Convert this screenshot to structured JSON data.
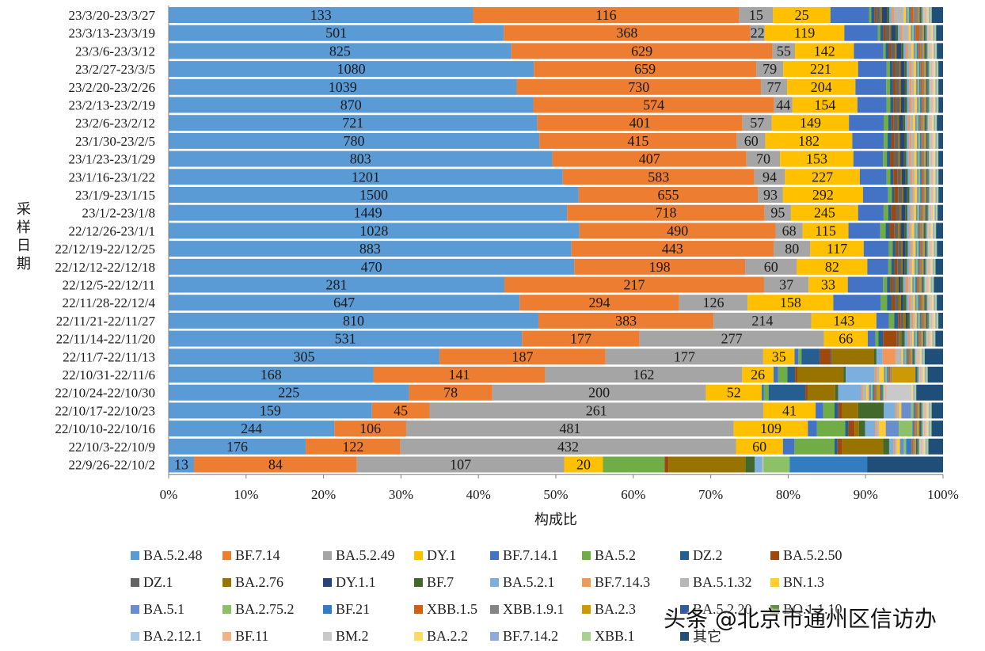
{
  "chart_data": {
    "type": "bar",
    "orientation": "horizontal",
    "stacked": "percent",
    "ylabel": "采样日期",
    "xlabel": "构成比",
    "x_ticks": [
      "0%",
      "10%",
      "20%",
      "30%",
      "40%",
      "50%",
      "60%",
      "70%",
      "80%",
      "90%",
      "100%"
    ],
    "xlim": [
      0,
      100
    ],
    "categories": [
      "23/3/20-23/3/27",
      "23/3/13-23/3/19",
      "23/3/6-23/3/12",
      "23/2/27-23/3/5",
      "23/2/20-23/2/26",
      "23/2/13-23/2/19",
      "23/2/6-23/2/12",
      "23/1/30-23/2/5",
      "23/1/23-23/1/29",
      "23/1/16-23/1/22",
      "23/1/9-23/1/15",
      "23/1/2-23/1/8",
      "22/12/26-23/1/1",
      "22/12/19-22/12/25",
      "22/12/12-22/12/18",
      "22/12/5-22/12/11",
      "22/11/28-22/12/4",
      "22/11/21-22/11/27",
      "22/11/14-22/11/20",
      "22/11/7-22/11/13",
      "22/10/31-22/11/6",
      "22/10/24-22/10/30",
      "22/10/17-22/10/23",
      "22/10/10-22/10/16",
      "22/10/3-22/10/9",
      "22/9/26-22/10/2"
    ],
    "label_series": [
      "BA.5.2.48",
      "BF.7.14",
      "BA.5.2.49",
      "DY.1"
    ],
    "series": [
      {
        "name": "BA.5.2.48",
        "color": "#5b9bd5",
        "values": [
          40.3,
          43.8,
          44.2,
          47.3,
          45.3,
          47.7,
          47.8,
          48.2,
          49.2,
          51.6,
          53.8,
          51.6,
          53.0,
          52.8,
          54.1,
          43.7,
          45.1,
          47.7,
          46.0,
          35.4,
          26.7,
          31.4,
          26.8,
          21.7,
          17.8,
          3.2
        ]
      },
      {
        "name": "BF.7.14",
        "color": "#ed7d31",
        "values": [
          35.2,
          32.2,
          33.7,
          28.8,
          31.8,
          31.5,
          26.6,
          25.7,
          24.9,
          25.1,
          23.5,
          25.6,
          25.3,
          26.5,
          22.8,
          33.8,
          20.5,
          22.6,
          15.3,
          21.7,
          22.4,
          10.9,
          7.6,
          9.4,
          12.3,
          20.6
        ]
      },
      {
        "name": "BA.5.2.49",
        "color": "#a5a5a5",
        "values": [
          4.5,
          1.9,
          2.9,
          3.5,
          3.4,
          2.4,
          3.8,
          3.7,
          4.3,
          4.0,
          3.3,
          3.4,
          3.5,
          4.8,
          6.9,
          5.8,
          8.8,
          12.6,
          24.0,
          20.6,
          25.7,
          27.9,
          44.0,
          42.9,
          43.6,
          26.2
        ]
      },
      {
        "name": "DY.1",
        "color": "#ffc000",
        "values": [
          7.6,
          10.4,
          7.6,
          9.7,
          8.9,
          8.5,
          10.0,
          11.3,
          9.4,
          9.8,
          10.5,
          8.7,
          5.9,
          7.0,
          9.4,
          5.1,
          11.0,
          8.4,
          5.7,
          4.1,
          4.1,
          7.3,
          6.9,
          9.7,
          6.1,
          4.9
        ]
      },
      {
        "name": "BF.7.14.1",
        "color": "#4472c4",
        "values": [
          5.1,
          4.4,
          3.8,
          3.7,
          4.0,
          3.8,
          4.5,
          4.1,
          3.8,
          3.5,
          3.3,
          3.3,
          4.1,
          3.3,
          2.8,
          4.6,
          6.1,
          1.6,
          1.0,
          0.5,
          0.6,
          0.3,
          1.0,
          1.2,
          1.5,
          0
        ]
      },
      {
        "name": "BA.5.2",
        "color": "#70ad47",
        "values": [
          0.3,
          0.3,
          0.3,
          0.4,
          0.5,
          0.5,
          0.6,
          0.5,
          0.5,
          0.5,
          0.5,
          0.6,
          0.7,
          0.5,
          0.4,
          0.5,
          0.8,
          0.7,
          0.4,
          0.4,
          1.2,
          0.6,
          1.5,
          3.7,
          5.2,
          7.8
        ]
      },
      {
        "name": "DZ.2",
        "color": "#255e91",
        "values": [
          0.4,
          0.4,
          0.4,
          0.4,
          0.4,
          0.4,
          0.4,
          0.5,
          0.4,
          0.4,
          0.3,
          0.4,
          0.5,
          0.4,
          0.4,
          0.4,
          0.6,
          0.5,
          0.6,
          2.4,
          1.0,
          4.8,
          0.5,
          0.4,
          0.4,
          0
        ]
      },
      {
        "name": "BA.5.2.50",
        "color": "#9e480e",
        "values": [
          0.2,
          0.3,
          0.3,
          0.3,
          0.4,
          0.3,
          0.3,
          0.4,
          0.5,
          0.5,
          0.5,
          0.6,
          0.6,
          0.3,
          0.4,
          0.3,
          0.4,
          0.3,
          1.8,
          1.4,
          0.3,
          0.3,
          0.5,
          0.8,
          0.6,
          0.5
        ]
      },
      {
        "name": "DZ.1",
        "color": "#636363",
        "values": [
          0.6,
          0.5,
          0.5,
          0.5,
          0.4,
          0.5,
          0.5,
          0.5,
          0.6,
          0.4,
          0.5,
          0.5,
          0.5,
          0.4,
          0.5,
          0.5,
          0.5,
          0.4,
          0.3,
          0.2,
          0,
          0,
          0,
          0,
          0,
          0
        ]
      },
      {
        "name": "BA.2.76",
        "color": "#997300",
        "values": [
          0.2,
          0.2,
          0.2,
          0.2,
          0.2,
          0.2,
          0.2,
          0.2,
          0.2,
          0.2,
          0.2,
          0.2,
          0.3,
          0.2,
          0.2,
          0.3,
          0.3,
          0.3,
          0.3,
          5.5,
          6.0,
          3.6,
          2.1,
          0.6,
          5.3,
          9.7
        ]
      },
      {
        "name": "DY.1.1",
        "color": "#264478",
        "values": [
          0.7,
          0.6,
          0.6,
          0.5,
          0.5,
          0.5,
          0.5,
          0.6,
          0.5,
          0.5,
          0.5,
          0.5,
          0.5,
          0.4,
          0.3,
          0.3,
          0.3,
          0.2,
          0.1,
          0,
          0,
          0,
          0,
          0,
          0,
          0
        ]
      },
      {
        "name": "BF.7",
        "color": "#43682b",
        "values": [
          0.3,
          0.3,
          0.3,
          0.3,
          0.3,
          0.3,
          0.3,
          0.3,
          0.3,
          0.3,
          0.3,
          0.3,
          0.3,
          0.3,
          0.3,
          0.3,
          0.4,
          0.3,
          0.3,
          0.3,
          0.3,
          0.4,
          3.4,
          0.8,
          0.8,
          1.2
        ]
      },
      {
        "name": "BA.5.2.1",
        "color": "#7cafdd",
        "values": [
          0.3,
          0.3,
          0.3,
          0.3,
          0.3,
          0.3,
          0.3,
          0.3,
          0.3,
          0.3,
          0.3,
          0.3,
          0.3,
          0.3,
          0.3,
          0.3,
          0.3,
          0.2,
          0.4,
          0.8,
          3.8,
          3.0,
          1.5,
          1.3,
          0.6,
          0.9
        ]
      },
      {
        "name": "BF.7.14.3",
        "color": "#f1975a",
        "values": [
          0.3,
          0.3,
          0.3,
          0.3,
          0.3,
          0.3,
          0.3,
          0.3,
          0.3,
          0.3,
          0.2,
          0.2,
          0.2,
          0.2,
          0.2,
          0.4,
          0.3,
          0.3,
          0.3,
          1.7,
          0.3,
          0.2,
          0.2,
          0.2,
          0.2,
          0
        ]
      },
      {
        "name": "BA.5.1.32",
        "color": "#b7b7b7",
        "values": [
          1.3,
          0.8,
          0.4,
          0.3,
          0.3,
          0.4,
          0.4,
          0.4,
          0.4,
          0.3,
          0.2,
          0.3,
          0.2,
          0.2,
          0.2,
          0.3,
          0.3,
          0.2,
          0.3,
          0.8,
          0.3,
          0.5,
          0.3,
          0.3,
          0.2,
          0.2
        ]
      },
      {
        "name": "BN.1.3",
        "color": "#ffcd33",
        "values": [
          0.3,
          0.3,
          0.3,
          0.3,
          0.3,
          0.3,
          0.3,
          0.3,
          0.3,
          0.3,
          0.3,
          0.3,
          0.3,
          0.3,
          0.3,
          0.2,
          0.2,
          0.2,
          0.2,
          0.2,
          0.6,
          0.3,
          0.3,
          0.9,
          0.4,
          0
        ]
      },
      {
        "name": "BA.5.1",
        "color": "#698ed0",
        "values": [
          0.2,
          0.2,
          0.2,
          0.2,
          0.2,
          0.2,
          0.2,
          0.2,
          0.2,
          0.2,
          0.2,
          0.2,
          0.2,
          0.2,
          0.2,
          0.2,
          0.2,
          0.2,
          0.2,
          0.2,
          0.2,
          0.3,
          1.3,
          1.7,
          0.5,
          0
        ]
      },
      {
        "name": "BA.2.75.2",
        "color": "#8cc168",
        "values": [
          0.2,
          0.2,
          0.2,
          0.2,
          0.2,
          0.2,
          0.2,
          0.2,
          0.2,
          0.2,
          0.2,
          0.2,
          0.2,
          0.2,
          0.2,
          0.2,
          0.2,
          0.2,
          0.2,
          0.2,
          0.2,
          0.2,
          0.3,
          1.8,
          0.3,
          3.3
        ]
      },
      {
        "name": "BF.21",
        "color": "#327dc2",
        "values": [
          0.2,
          0.2,
          0.2,
          0.2,
          0.2,
          0.2,
          0.2,
          0.2,
          0.2,
          0.2,
          0.2,
          0.2,
          0.2,
          0.2,
          0.2,
          0.2,
          0.2,
          0.2,
          0.2,
          0.2,
          0.2,
          0.2,
          0.2,
          0.2,
          0.7,
          9.8
        ]
      },
      {
        "name": "XBB.1.5",
        "color": "#d26012",
        "values": [
          0.4,
          0.5,
          0.3,
          0.3,
          0.3,
          0.2,
          0.2,
          0.2,
          0.2,
          0.2,
          0.2,
          0.2,
          0.2,
          0.2,
          0.2,
          0.2,
          0.2,
          0.2,
          0.2,
          0.2,
          0.2,
          0.2,
          0.2,
          0.2,
          0.2,
          0
        ]
      },
      {
        "name": "XBB.1.9.1",
        "color": "#848484",
        "values": [
          0.6,
          0.4,
          0.3,
          0.2,
          0.2,
          0.2,
          0.2,
          0.2,
          0.2,
          0.2,
          0.2,
          0.2,
          0.2,
          0.2,
          0.2,
          0.2,
          0.2,
          0.2,
          0.2,
          0.2,
          0.2,
          0.2,
          0.2,
          0.2,
          0.2,
          0
        ]
      },
      {
        "name": "BA.2.3",
        "color": "#cc9a06",
        "values": [
          0.2,
          0.2,
          0.2,
          0.2,
          0.2,
          0.2,
          0.2,
          0.2,
          0.2,
          0.2,
          0.2,
          0.2,
          0.2,
          0.2,
          0.2,
          0.2,
          0.2,
          0.2,
          0.2,
          0.2,
          3.1,
          0.4,
          0.2,
          0.3,
          0.2,
          0
        ]
      },
      {
        "name": "BA.5.2.20",
        "color": "#335aa1",
        "values": [
          0.2,
          0.2,
          0.2,
          0.2,
          0.2,
          0.2,
          0.2,
          0.2,
          0.2,
          0.2,
          0.2,
          0.2,
          0.2,
          0.2,
          0.2,
          0.2,
          0.2,
          0.2,
          0.2,
          0.2,
          0.2,
          0.2,
          0.2,
          0.2,
          0.2,
          0
        ]
      },
      {
        "name": "BQ.1.1.10",
        "color": "#5f8f3f",
        "values": [
          0.2,
          0.2,
          0.2,
          0.2,
          0.2,
          0.2,
          0.2,
          0.2,
          0.2,
          0.2,
          0.2,
          0.2,
          0.2,
          0.2,
          0.2,
          0.2,
          0.2,
          0.2,
          0.2,
          0.2,
          0.2,
          0.2,
          0.2,
          0.2,
          0.2,
          0
        ]
      },
      {
        "name": "BA.2.12.1",
        "color": "#a9cbe9",
        "values": [
          0.2,
          0.2,
          0.2,
          0.2,
          0.2,
          0.2,
          0.2,
          0.2,
          0.2,
          0.2,
          0.2,
          0.2,
          0.2,
          0.2,
          0.2,
          0.2,
          0.2,
          0.2,
          0.2,
          0.2,
          0.2,
          0.2,
          0.2,
          0.2,
          0.2,
          0
        ]
      },
      {
        "name": "BF.11",
        "color": "#f4b183",
        "values": [
          0.2,
          0.2,
          0.2,
          0.2,
          0.2,
          0.2,
          0.2,
          0.2,
          0.2,
          0.2,
          0.2,
          0.2,
          0.2,
          0.2,
          0.2,
          0.2,
          0.2,
          0.2,
          0.2,
          0.2,
          0.2,
          0.2,
          0.2,
          0.2,
          0.2,
          0
        ]
      },
      {
        "name": "BM.2",
        "color": "#c9c9c9",
        "values": [
          0.2,
          0.2,
          0.2,
          0.2,
          0.2,
          0.2,
          0.2,
          0.2,
          0.2,
          0.2,
          0.2,
          0.2,
          0.2,
          0.2,
          0.2,
          0.2,
          0.2,
          0.2,
          0.2,
          0.2,
          0.2,
          3.3,
          0.2,
          0.2,
          0.2,
          0
        ]
      },
      {
        "name": "BA.2.2",
        "color": "#ffd966",
        "values": [
          0.2,
          0.2,
          0.2,
          0.2,
          0.2,
          0.2,
          0.2,
          0.2,
          0.2,
          0.2,
          0.2,
          0.2,
          0.2,
          0.2,
          0.2,
          0.2,
          0.2,
          0.2,
          0.2,
          0.2,
          0.2,
          0.2,
          0.2,
          0.2,
          0.2,
          0
        ]
      },
      {
        "name": "BF.7.14.2",
        "color": "#8faadc",
        "values": [
          0.2,
          0.2,
          0.2,
          0.2,
          0.2,
          0.2,
          0.2,
          0.2,
          0.2,
          0.2,
          0.2,
          0.2,
          0.2,
          0.2,
          0.2,
          0.2,
          0.2,
          0.2,
          0.2,
          0.2,
          0.2,
          0.2,
          0.2,
          0.2,
          0.2,
          0
        ]
      },
      {
        "name": "XBB.1",
        "color": "#a9d18e",
        "values": [
          0.2,
          0.2,
          0.2,
          0.2,
          0.2,
          0.2,
          0.2,
          0.2,
          0.2,
          0.2,
          0.2,
          0.2,
          0.2,
          0.2,
          0.2,
          0.2,
          0.2,
          0.2,
          0.2,
          0.2,
          0.2,
          0.2,
          0.2,
          0.2,
          0.2,
          0
        ]
      },
      {
        "name": "其它",
        "color": "#1f4e79",
        "values": [
          1.5,
          0.9,
          0.8,
          0.6,
          0.6,
          0.6,
          0.8,
          0.6,
          0.6,
          0.6,
          0.6,
          0.7,
          0.9,
          0.8,
          1.0,
          1.2,
          0.8,
          0.6,
          1.0,
          2.4,
          2.0,
          3.5,
          1.5,
          1.5,
          1.9,
          9.6
        ]
      }
    ],
    "bar_labels": [
      [
        "133",
        "116",
        "15",
        "25"
      ],
      [
        "501",
        "368",
        "22",
        "119"
      ],
      [
        "825",
        "629",
        "55",
        "142"
      ],
      [
        "1080",
        "659",
        "79",
        "221"
      ],
      [
        "1039",
        "730",
        "77",
        "204"
      ],
      [
        "870",
        "574",
        "44",
        "154"
      ],
      [
        "721",
        "401",
        "57",
        "149"
      ],
      [
        "780",
        "415",
        "60",
        "182"
      ],
      [
        "803",
        "407",
        "70",
        "153"
      ],
      [
        "1201",
        "583",
        "94",
        "227"
      ],
      [
        "1500",
        "655",
        "93",
        "292"
      ],
      [
        "1449",
        "718",
        "95",
        "245"
      ],
      [
        "1028",
        "490",
        "68",
        "115"
      ],
      [
        "883",
        "443",
        "80",
        "117"
      ],
      [
        "470",
        "198",
        "60",
        "82"
      ],
      [
        "281",
        "217",
        "37",
        "33"
      ],
      [
        "647",
        "294",
        "126",
        "158"
      ],
      [
        "810",
        "383",
        "214",
        "143"
      ],
      [
        "531",
        "177",
        "277",
        "66"
      ],
      [
        "305",
        "187",
        "177",
        "35"
      ],
      [
        "168",
        "141",
        "162",
        "26"
      ],
      [
        "225",
        "78",
        "200",
        "52"
      ],
      [
        "159",
        "45",
        "261",
        "41"
      ],
      [
        "244",
        "106",
        "481",
        "109"
      ],
      [
        "176",
        "122",
        "432",
        "60"
      ],
      [
        "13",
        "84",
        "107",
        "20"
      ]
    ]
  },
  "watermark": "头条 @北京市通州区信访办"
}
